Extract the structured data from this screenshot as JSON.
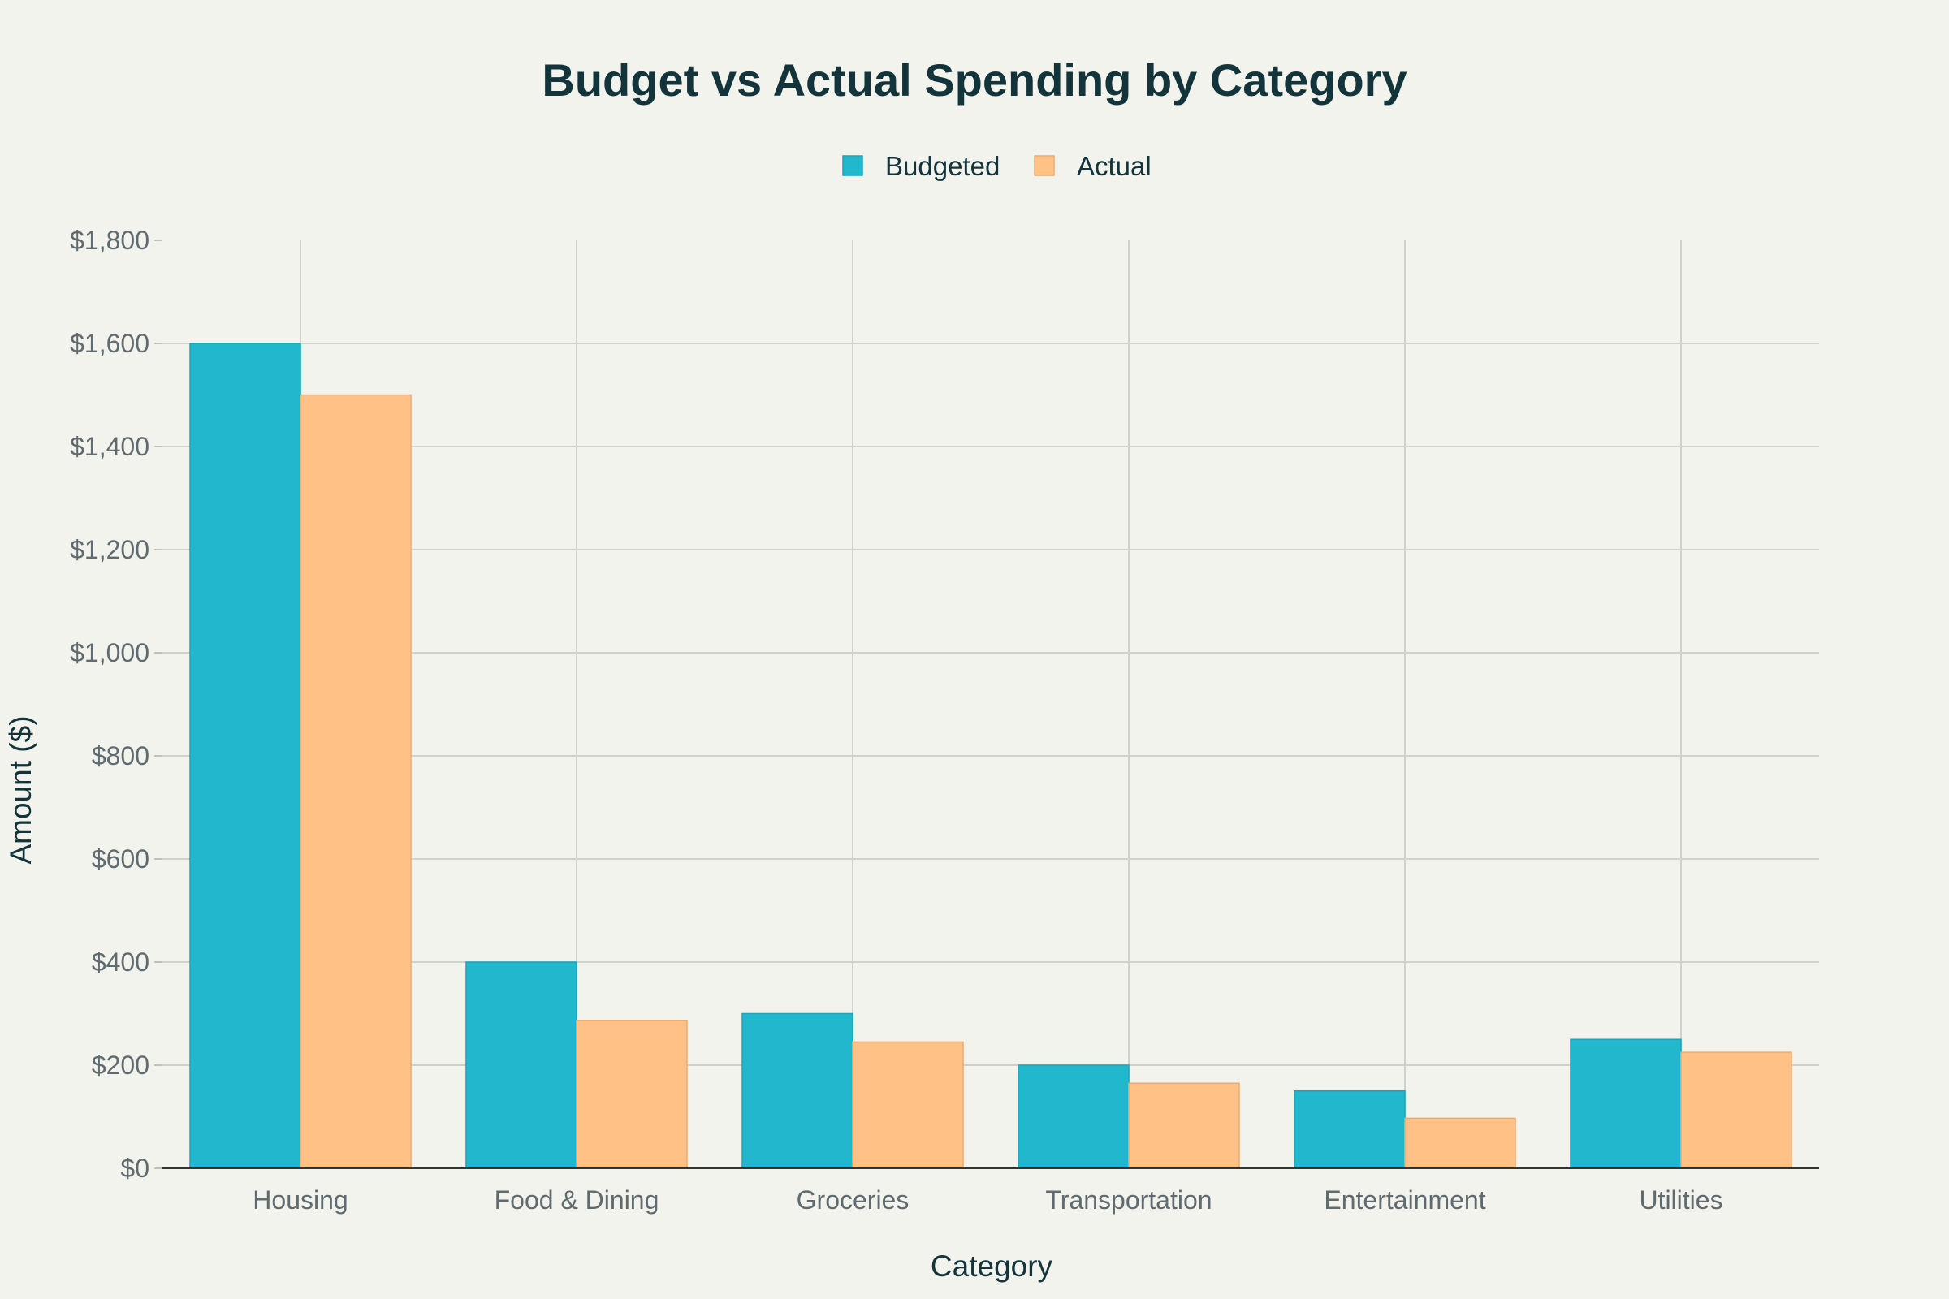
{
  "chart_data": {
    "type": "bar",
    "title": "Budget vs Actual Spending by Category",
    "xlabel": "Category",
    "ylabel": "Amount ($)",
    "categories": [
      "Housing",
      "Food & Dining",
      "Groceries",
      "Transportation",
      "Entertainment",
      "Utilities"
    ],
    "series": [
      {
        "name": "Budgeted",
        "color": "#21b8cd",
        "values": [
          1600,
          400,
          300,
          200,
          150,
          250
        ]
      },
      {
        "name": "Actual",
        "color": "#ffc185",
        "values": [
          1500,
          287,
          245,
          165,
          97,
          225
        ]
      }
    ],
    "ylim": [
      0,
      1800
    ],
    "yticks": [
      0,
      200,
      400,
      600,
      800,
      1000,
      1200,
      1400,
      1600,
      1800
    ],
    "ytick_labels": [
      "$0",
      "$200",
      "$400",
      "$600",
      "$800",
      "$1,000",
      "$1,200",
      "$1,400",
      "$1,600",
      "$1,800"
    ],
    "grid": true,
    "legend_position": "top-center"
  }
}
